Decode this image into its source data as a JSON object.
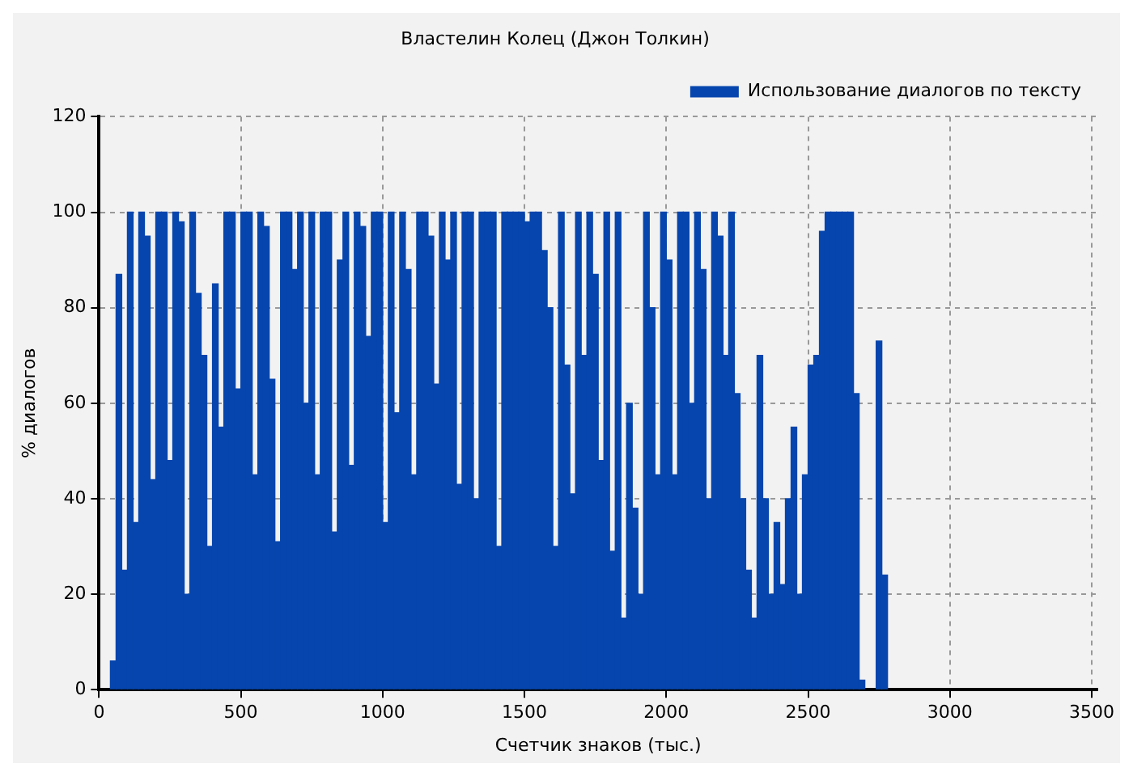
{
  "chart_data": {
    "type": "bar",
    "title": "Властелин Колец (Джон Толкин)",
    "xlabel": "Счетчик знаков (тыс.)",
    "ylabel": "% диалогов",
    "x": [
      50,
      70,
      90,
      110,
      130,
      150,
      170,
      190,
      210,
      230,
      250,
      270,
      290,
      310,
      330,
      350,
      370,
      390,
      410,
      430,
      450,
      470,
      490,
      510,
      530,
      550,
      570,
      590,
      610,
      630,
      650,
      670,
      690,
      710,
      730,
      750,
      770,
      790,
      810,
      830,
      850,
      870,
      890,
      910,
      930,
      950,
      970,
      990,
      1010,
      1030,
      1050,
      1070,
      1090,
      1110,
      1130,
      1150,
      1170,
      1190,
      1210,
      1230,
      1250,
      1270,
      1290,
      1310,
      1330,
      1350,
      1370,
      1390,
      1410,
      1430,
      1450,
      1470,
      1490,
      1510,
      1530,
      1550,
      1570,
      1590,
      1610,
      1630,
      1650,
      1670,
      1690,
      1710,
      1730,
      1750,
      1770,
      1790,
      1810,
      1830,
      1850,
      1870,
      1890,
      1910,
      1930,
      1950,
      1970,
      1990,
      2010,
      2030,
      2050,
      2070,
      2090,
      2110,
      2130,
      2150,
      2170,
      2190,
      2210,
      2230,
      2250,
      2270,
      2290,
      2310,
      2330,
      2350,
      2370,
      2390,
      2410,
      2430,
      2450,
      2470,
      2490,
      2510,
      2530,
      2550,
      2570,
      2590,
      2610,
      2630,
      2650,
      2670,
      2690,
      2750,
      2770
    ],
    "series": [
      {
        "name": "Использование диалогов по тексту",
        "color": "#0645ad",
        "values": [
          6,
          87,
          25,
          100,
          35,
          100,
          95,
          44,
          100,
          100,
          48,
          100,
          98,
          20,
          100,
          83,
          70,
          30,
          85,
          55,
          100,
          100,
          63,
          100,
          100,
          45,
          100,
          97,
          65,
          31,
          100,
          100,
          88,
          100,
          60,
          100,
          45,
          100,
          100,
          33,
          90,
          100,
          47,
          100,
          97,
          74,
          100,
          100,
          35,
          100,
          58,
          100,
          88,
          45,
          100,
          100,
          95,
          64,
          100,
          90,
          100,
          43,
          100,
          100,
          40,
          100,
          100,
          100,
          30,
          100,
          100,
          100,
          100,
          98,
          100,
          100,
          92,
          80,
          30,
          100,
          68,
          41,
          100,
          70,
          100,
          87,
          48,
          100,
          29,
          100,
          15,
          60,
          38,
          20,
          100,
          80,
          45,
          100,
          90,
          45,
          100,
          100,
          60,
          100,
          88,
          40,
          100,
          95,
          70,
          100,
          62,
          40,
          25,
          15,
          70,
          40,
          20,
          35,
          22,
          40,
          55,
          20,
          45,
          68,
          70,
          96,
          100,
          100,
          100,
          100,
          100,
          62,
          2,
          73,
          24
        ]
      }
    ],
    "xlim": [
      0,
      3520
    ],
    "xticks": [
      0,
      500,
      1000,
      1500,
      2000,
      2500,
      3000,
      3500
    ],
    "ylim": [
      0,
      120
    ],
    "yticks": [
      0,
      20,
      40,
      60,
      80,
      100,
      120
    ],
    "grid": true,
    "legend": "top right"
  }
}
